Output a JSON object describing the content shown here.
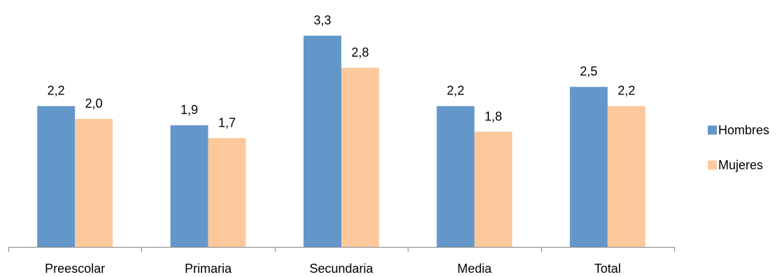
{
  "chart_data": {
    "type": "bar",
    "categories": [
      "Preescolar",
      "Primaria",
      "Secundaria",
      "Media",
      "Total"
    ],
    "series": [
      {
        "name": "Hombres",
        "values": [
          2.2,
          1.9,
          3.3,
          2.2,
          2.5
        ],
        "labels": [
          "2,2",
          "1,9",
          "3,3",
          "2,2",
          "2,5"
        ],
        "color": "#6497c9"
      },
      {
        "name": "Mujeres",
        "values": [
          2.0,
          1.7,
          2.8,
          1.8,
          2.2
        ],
        "labels": [
          "2,0",
          "1,7",
          "2,8",
          "1,8",
          "2,2"
        ],
        "color": "#fcc89c"
      }
    ],
    "ylim": [
      0,
      3.3
    ],
    "grid": false,
    "legend": "right",
    "axis_color": "#878787"
  }
}
